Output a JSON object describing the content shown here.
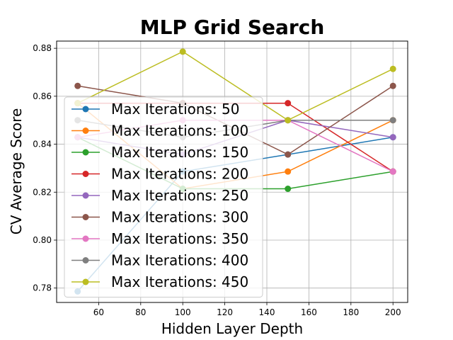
{
  "chart_data": {
    "type": "line",
    "title": "MLP Grid Search",
    "xlabel": "Hidden Layer Depth",
    "ylabel": "CV Average Score",
    "x": [
      50,
      100,
      150,
      200
    ],
    "xlim": [
      40,
      207
    ],
    "ylim": [
      0.774,
      0.883
    ],
    "xticks": [
      60,
      80,
      100,
      120,
      140,
      160,
      180,
      200
    ],
    "xtick_labels": [
      "60",
      "80",
      "100",
      "120",
      "140",
      "160",
      "180",
      "200"
    ],
    "yticks": [
      0.78,
      0.8,
      0.82,
      0.84,
      0.86,
      0.88
    ],
    "ytick_labels": [
      "0.78",
      "0.80",
      "0.82",
      "0.84",
      "0.86",
      "0.88"
    ],
    "grid": true,
    "legend_position": "left",
    "series": [
      {
        "name": "Max Iterations: 50",
        "color": "#1f77b4",
        "values": [
          0.7786,
          0.8286,
          0.8357,
          0.8429
        ]
      },
      {
        "name": "Max Iterations: 100",
        "color": "#ff7f0e",
        "values": [
          0.8571,
          0.8214,
          0.8286,
          0.85
        ]
      },
      {
        "name": "Max Iterations: 150",
        "color": "#2ca02c",
        "values": [
          0.8429,
          0.8214,
          0.8214,
          0.8286
        ]
      },
      {
        "name": "Max Iterations: 200",
        "color": "#d62728",
        "values": [
          0.8571,
          0.8571,
          0.8571,
          0.8286
        ]
      },
      {
        "name": "Max Iterations: 250",
        "color": "#9467bd",
        "values": [
          0.8429,
          0.8357,
          0.85,
          0.8429
        ]
      },
      {
        "name": "Max Iterations: 300",
        "color": "#8c564b",
        "values": [
          0.8643,
          0.8571,
          0.8357,
          0.8643
        ]
      },
      {
        "name": "Max Iterations: 350",
        "color": "#e377c2",
        "values": [
          0.8429,
          0.85,
          0.85,
          0.8286
        ]
      },
      {
        "name": "Max Iterations: 400",
        "color": "#7f7f7f",
        "values": [
          0.85,
          0.8429,
          0.85,
          0.85
        ]
      },
      {
        "name": "Max Iterations: 450",
        "color": "#bcbd22",
        "values": [
          0.8571,
          0.8786,
          0.85,
          0.8714
        ]
      }
    ]
  }
}
